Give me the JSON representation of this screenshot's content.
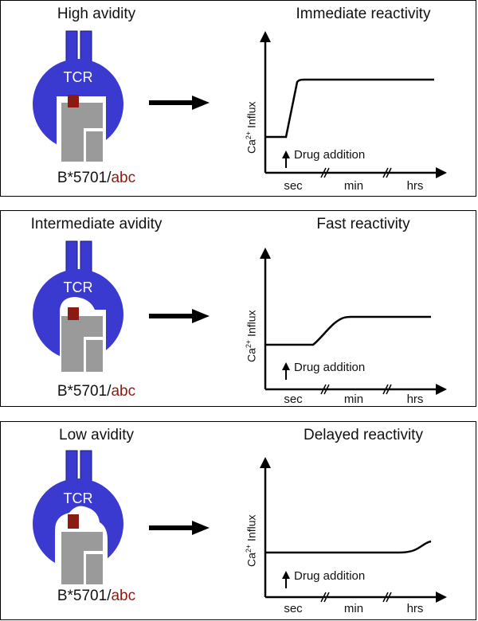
{
  "panels": [
    {
      "avidity": "High avidity",
      "reactivity": "Immediate reactivity",
      "tcr_label": "TCR",
      "allele_prefix": "B*5701/",
      "allele_drug": "abc",
      "y_axis_label": "Ca",
      "y_axis_sup": "2+",
      "y_axis_suffix": " Influx",
      "drug_label": "Drug addition",
      "x_ticks": [
        "sec",
        "min",
        "hrs"
      ],
      "fit": "tight",
      "response_onset": "sec",
      "response_shape": "step"
    },
    {
      "avidity": "Intermediate avidity",
      "reactivity": "Fast reactivity",
      "tcr_label": "TCR",
      "allele_prefix": "B*5701/",
      "allele_drug": "abc",
      "y_axis_label": "Ca",
      "y_axis_sup": "2+",
      "y_axis_suffix": " Influx",
      "drug_label": "Drug addition",
      "x_ticks": [
        "sec",
        "min",
        "hrs"
      ],
      "fit": "loose",
      "response_onset": "min",
      "response_shape": "sigmoid"
    },
    {
      "avidity": "Low avidity",
      "reactivity": "Delayed reactivity",
      "tcr_label": "TCR",
      "allele_prefix": "B*5701/",
      "allele_drug": "abc",
      "y_axis_label": "Ca",
      "y_axis_sup": "2+",
      "y_axis_suffix": " Influx",
      "drug_label": "Drug addition",
      "x_ticks": [
        "sec",
        "min",
        "hrs"
      ],
      "fit": "very-loose",
      "response_onset": "hrs",
      "response_shape": "late-rise"
    }
  ],
  "colors": {
    "tcr_blue": "#3a3ad0",
    "hla_gray": "#9a9a9a",
    "drug_red": "#8b1a12",
    "line": "#000000"
  }
}
